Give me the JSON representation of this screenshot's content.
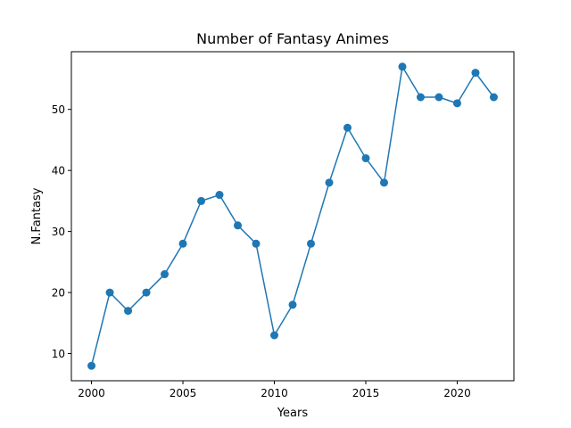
{
  "chart_data": {
    "type": "line",
    "title": "Number of Fantasy Animes",
    "xlabel": "Years",
    "ylabel": "N.Fantasy",
    "x": [
      2000,
      2001,
      2002,
      2003,
      2004,
      2005,
      2006,
      2007,
      2008,
      2009,
      2010,
      2011,
      2012,
      2013,
      2014,
      2015,
      2016,
      2017,
      2018,
      2019,
      2020,
      2021,
      2022
    ],
    "series": [
      {
        "values": [
          8,
          20,
          17,
          20,
          23,
          28,
          35,
          36,
          31,
          28,
          13,
          18,
          28,
          38,
          47,
          42,
          38,
          57,
          52,
          52,
          51,
          56,
          52
        ],
        "color": "#1f77b4",
        "marker": "circle"
      }
    ],
    "xlim": [
      1998.9,
      2023.1
    ],
    "ylim": [
      5.55,
      59.45
    ],
    "xticks": [
      2000,
      2005,
      2010,
      2015,
      2020
    ],
    "yticks": [
      10,
      20,
      30,
      40,
      50
    ],
    "grid": false
  }
}
